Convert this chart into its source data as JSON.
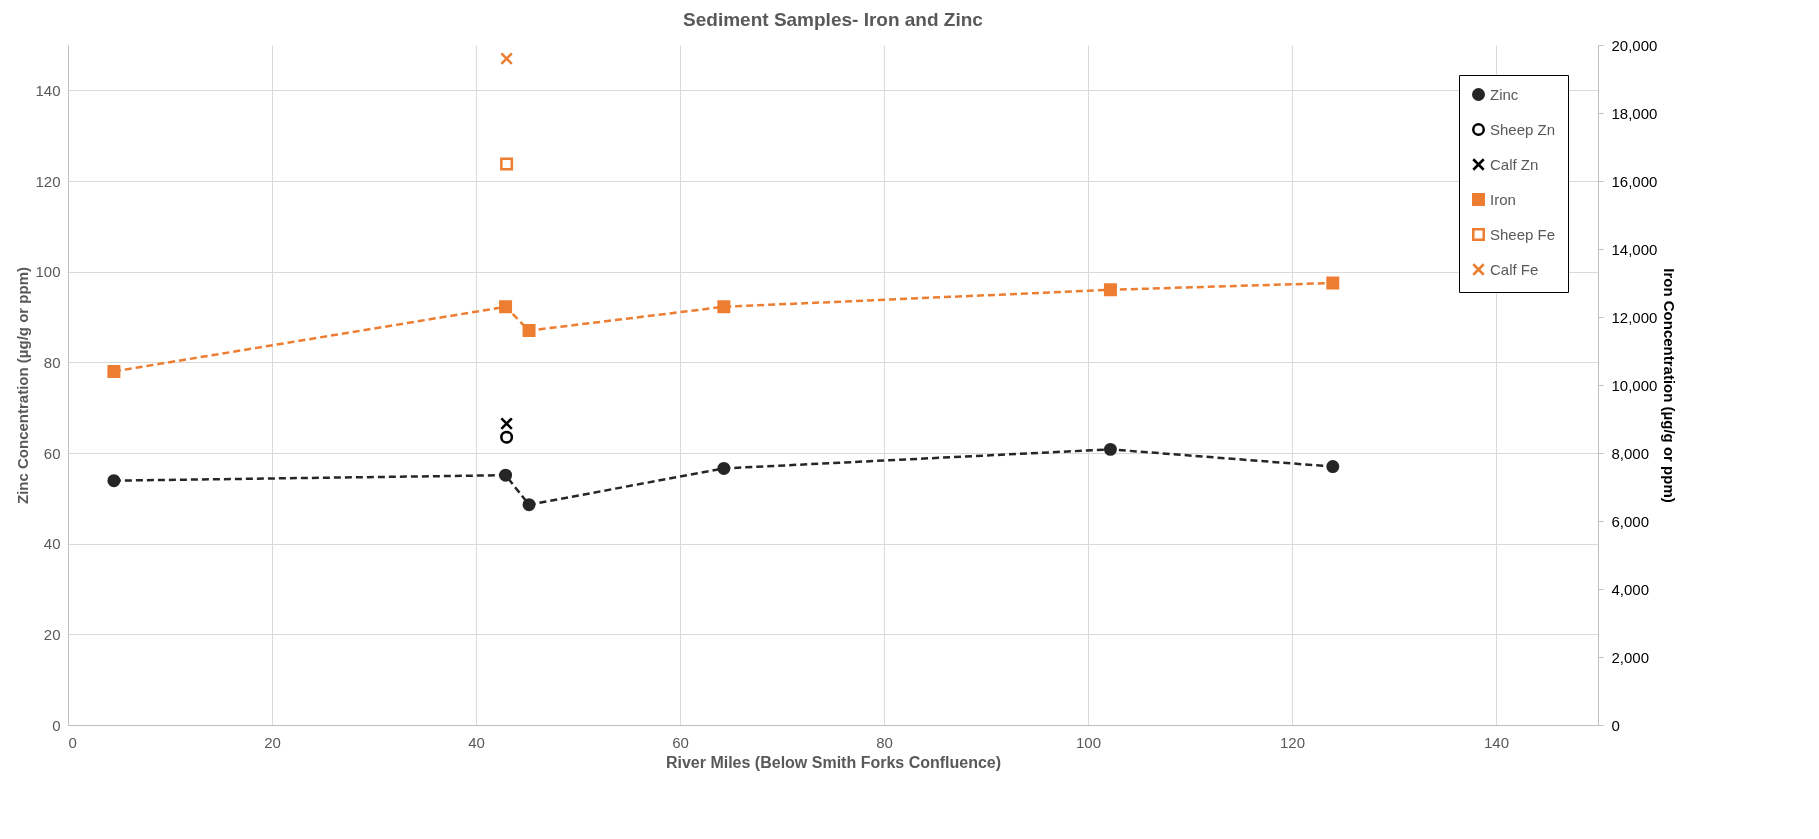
{
  "chart_data": {
    "type": "line",
    "title": "Sediment Samples- Iron and Zinc",
    "xlabel": "River Miles (Below Smith Forks Confluence)",
    "ylabel": "Zinc Concentration (µg/g or ppm)",
    "y2label": "Iron Concentration (µg/g or ppm)",
    "xlim": [
      0,
      150
    ],
    "xticks": [
      0,
      20,
      40,
      60,
      80,
      100,
      120,
      140
    ],
    "ylim": [
      0,
      150
    ],
    "yticks": [
      0,
      20,
      40,
      60,
      80,
      100,
      120,
      140
    ],
    "y2lim": [
      0,
      20000
    ],
    "y2ticks": [
      0,
      {
        "value": 2000,
        "label": "2,000"
      },
      {
        "value": 4000,
        "label": "4,000"
      },
      {
        "value": 6000,
        "label": "6,000"
      },
      {
        "value": 8000,
        "label": "8,000"
      },
      {
        "value": 10000,
        "label": "10,000"
      },
      {
        "value": 12000,
        "label": "12,000"
      },
      {
        "value": 14000,
        "label": "14,000"
      },
      {
        "value": 16000,
        "label": "16,000"
      },
      {
        "value": 18000,
        "label": "18,000"
      },
      {
        "value": 20000,
        "label": "20,000"
      }
    ],
    "grid": true,
    "legend": "right",
    "series": [
      {
        "name": "Zinc",
        "color": "#262626",
        "marker": "circle",
        "line_style": "dashed",
        "x": [
          4.5,
          42.9,
          45.2,
          64.3,
          102.2,
          124.0
        ],
        "values": [
          53.9,
          55.1,
          48.6,
          56.6,
          60.8,
          57.0
        ]
      },
      {
        "name": "Sheep Zn",
        "type": "scatter",
        "color": "#000000",
        "marker": "circle",
        "x": [
          43
        ],
        "values": [
          63.5
        ]
      },
      {
        "name": "Calf Zn",
        "type": "scatter",
        "color": "#000000",
        "marker": "cross",
        "x": [
          43
        ],
        "values": [
          66.5
        ]
      },
      {
        "name": "Iron",
        "color": "#ed7d31",
        "marker": "square",
        "line_style": "dashed",
        "axis": "y2",
        "x": [
          4.5,
          42.9,
          45.2,
          64.3,
          102.2,
          124.0
        ],
        "values": [
          10400,
          12300,
          11600,
          12300,
          12800,
          13000
        ]
      },
      {
        "name": "Sheep Fe",
        "type": "scatter",
        "color": "#ed7d31",
        "marker": "square",
        "axis": "y2",
        "x": [
          43
        ],
        "values": [
          16500
        ]
      },
      {
        "name": "Calf Fe",
        "type": "scatter",
        "color": "#ed7d31",
        "marker": "cross",
        "axis": "y2",
        "x": [
          43
        ],
        "values": [
          19600
        ]
      }
    ]
  }
}
